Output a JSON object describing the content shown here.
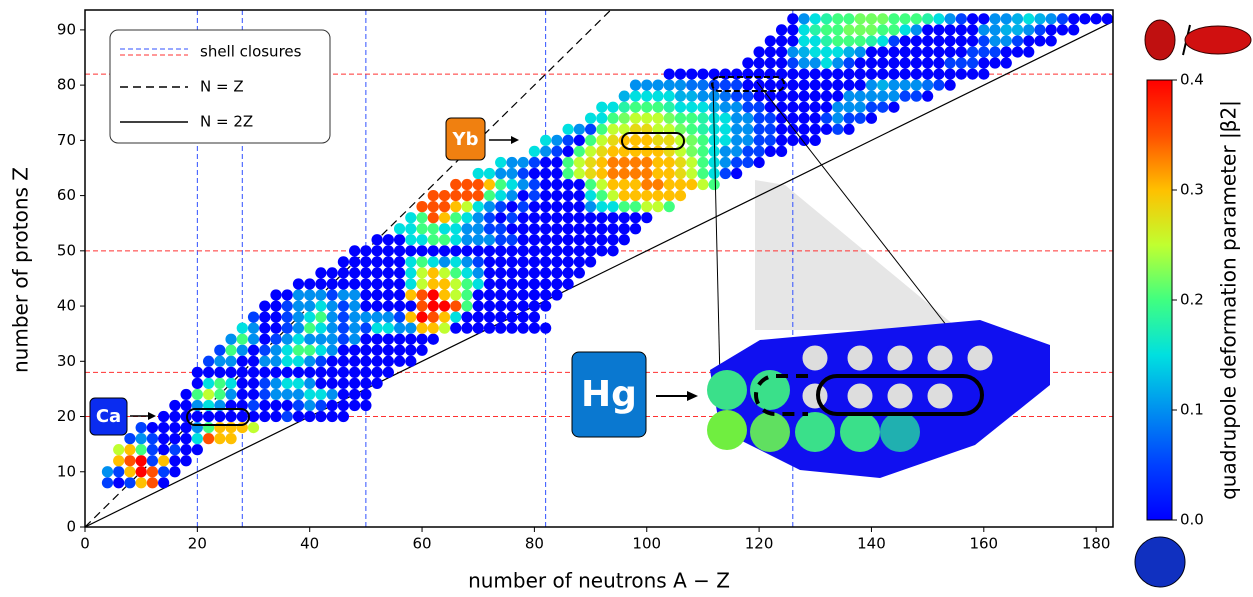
{
  "chart_data": {
    "type": "nuclear-chart",
    "xlabel": "number of neutrons A − Z",
    "ylabel": "number of protons Z",
    "colorbar_label": "quadrupole deformation parameter |β2|",
    "xlim": [
      0,
      183
    ],
    "ylim": [
      0,
      93.6
    ],
    "xticks": [
      0,
      20,
      40,
      60,
      80,
      100,
      120,
      140,
      160,
      180
    ],
    "yticks": [
      0,
      10,
      20,
      30,
      40,
      50,
      60,
      70,
      80,
      90
    ],
    "clim": [
      0,
      0.4
    ],
    "cticks": [
      {
        "value": 0,
        "label": "0.0"
      },
      0.1,
      0.2,
      0.3,
      0.4
    ],
    "legend": [
      "shell closures",
      "N = Z",
      "N = 2Z"
    ],
    "shell_closures": {
      "n": [
        20,
        28,
        50,
        82,
        126
      ],
      "z": [
        20,
        28,
        50,
        82
      ]
    },
    "tags": [
      "Ca",
      "Yb",
      "Hg"
    ],
    "rows": [
      {
        "z": 8,
        "n": 4,
        "beta": [
          0.05,
          0,
          0.05,
          0.3,
          0.35,
          0
        ]
      },
      {
        "z": 10,
        "n": 4,
        "beta": [
          0.1,
          0.05,
          0.3,
          0.4,
          0.35,
          0.05,
          0
        ]
      },
      {
        "z": 12,
        "n": 6,
        "beta": [
          0.3,
          0.35,
          0.4,
          0.05,
          0.3,
          0,
          0
        ]
      },
      {
        "z": 14,
        "n": 6,
        "beta": [
          0.25,
          0.3,
          0.2,
          0.05,
          0,
          0.05,
          0,
          0
        ]
      },
      {
        "z": 16,
        "n": 8,
        "beta": [
          0.05,
          0.1,
          0.05,
          0,
          0,
          0,
          0.15,
          0.35,
          0.3,
          0.3
        ]
      },
      {
        "z": 18,
        "n": 10,
        "beta": [
          0.05,
          0,
          0,
          0,
          0,
          0.1,
          0.2,
          0.3,
          0.3,
          0.3,
          0.25
        ]
      },
      {
        "z": 20,
        "n": 14,
        "beta": [
          0,
          0,
          0,
          0,
          0,
          0,
          0,
          0,
          0,
          0,
          0,
          0.05,
          0,
          0,
          0,
          0,
          0
        ]
      },
      {
        "z": 22,
        "n": 16,
        "beta": [
          0,
          0,
          0.1,
          0.15,
          0.1,
          0,
          0,
          0.05,
          0,
          0,
          0,
          0.05,
          0.1,
          0.05,
          0,
          0,
          0,
          0
        ]
      },
      {
        "z": 24,
        "n": 18,
        "beta": [
          0,
          0.2,
          0.25,
          0.2,
          0.1,
          0,
          0,
          0.05,
          0.1,
          0.1,
          0.1,
          0.15,
          0.15,
          0.1,
          0,
          0,
          0
        ]
      },
      {
        "z": 26,
        "n": 20,
        "beta": [
          0,
          0.15,
          0.2,
          0.15,
          0,
          0,
          0.05,
          0.1,
          0.15,
          0.15,
          0.1,
          0,
          0,
          0,
          0,
          0,
          0
        ]
      },
      {
        "z": 28,
        "n": 20,
        "beta": [
          0,
          0,
          0,
          0,
          0,
          0,
          0,
          0,
          0,
          0,
          0,
          0,
          0,
          0,
          0,
          0,
          0,
          0
        ]
      },
      {
        "z": 30,
        "n": 22,
        "beta": [
          0.05,
          0.1,
          0.1,
          0,
          0,
          0.1,
          0.1,
          0.15,
          0.15,
          0.1,
          0.05,
          0,
          0,
          0,
          0,
          0,
          0,
          0,
          0
        ]
      },
      {
        "z": 32,
        "n": 24,
        "beta": [
          0.05,
          0.2,
          0.1,
          0,
          0.05,
          0.1,
          0.15,
          0.2,
          0.2,
          0.15,
          0.1,
          0,
          0,
          0,
          0,
          0,
          0,
          0,
          0
        ]
      },
      {
        "z": 34,
        "n": 26,
        "beta": [
          0.1,
          0.2,
          0.1,
          0,
          0.05,
          0.1,
          0.15,
          0.1,
          0.1,
          0.1,
          0.05,
          0.1,
          0,
          0,
          0,
          0,
          0,
          0,
          0
        ]
      },
      {
        "z": 36,
        "n": 28,
        "beta": [
          0.15,
          0.1,
          0,
          0,
          0.05,
          0.1,
          0.2,
          0.15,
          0.1,
          0.05,
          0.1,
          0.05,
          0.15,
          0.15,
          0.1,
          0.1,
          0.3,
          0.3,
          0.25,
          0,
          0,
          0,
          0,
          0,
          0,
          0,
          0,
          0
        ]
      },
      {
        "z": 38,
        "n": 30,
        "beta": [
          0.05,
          0,
          0,
          0.05,
          0.1,
          0.15,
          0.2,
          0.1,
          0.05,
          0.1,
          0.1,
          0.1,
          0.1,
          0.05,
          0.3,
          0.4,
          0.35,
          0.3,
          0.15,
          0,
          0,
          0,
          0,
          0,
          0,
          0
        ]
      },
      {
        "z": 40,
        "n": 32,
        "beta": [
          0,
          0,
          0.05,
          0.1,
          0.1,
          0.15,
          0.1,
          0.05,
          0.1,
          0,
          0,
          0,
          0,
          0,
          0.35,
          0.4,
          0.4,
          0.35,
          0.2,
          0,
          0,
          0,
          0,
          0,
          0,
          0
        ]
      },
      {
        "z": 42,
        "n": 34,
        "beta": [
          0,
          0,
          0.1,
          0.1,
          0.1,
          0.05,
          0.1,
          0.1,
          0,
          0,
          0,
          0,
          0.3,
          0.35,
          0.4,
          0.3,
          0.25,
          0.2,
          0,
          0,
          0,
          0,
          0,
          0,
          0,
          0
        ]
      },
      {
        "z": 44,
        "n": 38,
        "beta": [
          0,
          0,
          0,
          0,
          0,
          0,
          0,
          0,
          0,
          0,
          0.15,
          0.25,
          0.3,
          0.3,
          0.25,
          0.2,
          0.15,
          0,
          0,
          0,
          0,
          0,
          0,
          0,
          0
        ]
      },
      {
        "z": 46,
        "n": 42,
        "beta": [
          0,
          0,
          0,
          0,
          0,
          0,
          0,
          0,
          0.15,
          0.25,
          0.3,
          0.25,
          0.2,
          0.15,
          0.1,
          0,
          0,
          0,
          0,
          0,
          0,
          0,
          0,
          0
        ]
      },
      {
        "z": 48,
        "n": 46,
        "beta": [
          0,
          0,
          0,
          0,
          0,
          0,
          0.15,
          0.2,
          0.15,
          0.1,
          0.15,
          0.1,
          0.05,
          0,
          0,
          0,
          0,
          0,
          0,
          0,
          0,
          0,
          0
        ]
      },
      {
        "z": 50,
        "n": 48,
        "beta": [
          0,
          0,
          0,
          0,
          0,
          0,
          0,
          0,
          0,
          0,
          0,
          0,
          0,
          0,
          0,
          0,
          0,
          0,
          0,
          0,
          0,
          0,
          0,
          0
        ]
      },
      {
        "z": 52,
        "n": 52,
        "beta": [
          0,
          0,
          0,
          0.15,
          0.15,
          0.2,
          0.2,
          0.15,
          0.1,
          0.1,
          0.1,
          0.05,
          0.05,
          0,
          0,
          0,
          0,
          0,
          0,
          0,
          0,
          0,
          0
        ]
      },
      {
        "z": 54,
        "n": 56,
        "beta": [
          0.15,
          0.15,
          0.2,
          0.2,
          0.15,
          0.15,
          0.1,
          0.1,
          0.05,
          0.05,
          0,
          0,
          0,
          0,
          0,
          0,
          0,
          0,
          0,
          0,
          0,
          0
        ]
      },
      {
        "z": 56,
        "n": 58,
        "beta": [
          0.15,
          0.2,
          0.35,
          0.3,
          0.2,
          0.15,
          0.1,
          0.05,
          0,
          0.05,
          0,
          0,
          0,
          0,
          0,
          0,
          0,
          0,
          0,
          0,
          0,
          0
        ]
      },
      {
        "z": 58,
        "n": 60,
        "beta": [
          0.35,
          0.35,
          0.35,
          0.3,
          0.25,
          0.15,
          0.1,
          0.05,
          0,
          0.05,
          0,
          0,
          0,
          0,
          0,
          0.1,
          0.15,
          0.15,
          0.2,
          0.2,
          0.25,
          0.25,
          0.2
        ]
      },
      {
        "z": 60,
        "n": 62,
        "beta": [
          0.35,
          0.35,
          0.35,
          0.35,
          0.35,
          0.2,
          0.15,
          0.1,
          0,
          0.05,
          0,
          0,
          0,
          0,
          0.15,
          0.2,
          0.25,
          0.3,
          0.3,
          0.3,
          0.3,
          0.3,
          0.3
        ]
      },
      {
        "z": 62,
        "n": 66,
        "beta": [
          0.35,
          0.35,
          0.35,
          0.3,
          0.2,
          0.15,
          0.1,
          0.05,
          0,
          0,
          0,
          0,
          0.2,
          0.25,
          0.3,
          0.3,
          0.3,
          0.33,
          0.33,
          0.3,
          0.3,
          0.3,
          0.25,
          0.2
        ]
      },
      {
        "z": 64,
        "n": 70,
        "beta": [
          0.15,
          0.15,
          0.1,
          0.1,
          0.05,
          0,
          0,
          0,
          0.2,
          0.25,
          0.28,
          0.3,
          0.33,
          0.33,
          0.33,
          0.33,
          0.3,
          0.3,
          0.28,
          0.25,
          0.2,
          0.15,
          0.05,
          0
        ]
      },
      {
        "z": 66,
        "n": 74,
        "beta": [
          0.15,
          0.1,
          0.1,
          0.05,
          0,
          0,
          0.2,
          0.25,
          0.28,
          0.3,
          0.33,
          0.33,
          0.33,
          0.33,
          0.3,
          0.3,
          0.28,
          0.25,
          0.2,
          0.15,
          0.1,
          0.05,
          0.05,
          0
        ]
      },
      {
        "z": 68,
        "n": 80,
        "beta": [
          0.15,
          0.1,
          0.05,
          0,
          0.2,
          0.25,
          0.28,
          0.3,
          0.3,
          0.3,
          0.3,
          0.3,
          0.28,
          0.25,
          0.22,
          0.2,
          0.15,
          0.1,
          0.1,
          0.05,
          0.05,
          0,
          0
        ]
      },
      {
        "z": 70,
        "n": 82,
        "beta": [
          0.15,
          0.1,
          0.05,
          0,
          0.2,
          0.25,
          0.28,
          0.3,
          0.3,
          0.3,
          0.28,
          0.28,
          0.25,
          0.22,
          0.2,
          0.15,
          0.15,
          0.1,
          0.1,
          0.05,
          0.05,
          0,
          0,
          0,
          0
        ]
      },
      {
        "z": 72,
        "n": 86,
        "beta": [
          0.15,
          0.1,
          0.05,
          0.2,
          0.25,
          0.25,
          0.28,
          0.28,
          0.25,
          0.25,
          0.22,
          0.2,
          0.18,
          0.15,
          0.15,
          0.1,
          0.1,
          0.05,
          0.05,
          0,
          0,
          0,
          0,
          0,
          0.05,
          0
        ]
      },
      {
        "z": 74,
        "n": 90,
        "beta": [
          0.15,
          0.15,
          0.2,
          0.22,
          0.25,
          0.25,
          0.25,
          0.22,
          0.2,
          0.2,
          0.18,
          0.15,
          0.15,
          0.1,
          0.1,
          0.05,
          0.05,
          0,
          0,
          0,
          0,
          0.05,
          0.1,
          0.05,
          0.05,
          0
        ]
      },
      {
        "z": 76,
        "n": 92,
        "beta": [
          0.15,
          0.15,
          0.18,
          0.2,
          0.2,
          0.2,
          0.18,
          0.15,
          0.15,
          0.15,
          0.12,
          0.1,
          0.1,
          0.05,
          0.05,
          0,
          0,
          0,
          0,
          0,
          0,
          0.1,
          0.1,
          0.1,
          0.05,
          0.05,
          0
        ]
      },
      {
        "z": 78,
        "n": 96,
        "beta": [
          0.12,
          0.15,
          0.15,
          0.15,
          0.15,
          0.12,
          0.12,
          0.1,
          0.1,
          0.08,
          0.05,
          0.05,
          0,
          0,
          0,
          0,
          0,
          0,
          0,
          0,
          0.1,
          0.1,
          0.1,
          0.1,
          0.1,
          0.05,
          0.05,
          0
        ]
      },
      {
        "z": 80,
        "n": 98,
        "beta": [
          0.1,
          0.1,
          0.1,
          0.1,
          0.1,
          0.08,
          0.08,
          0.05,
          0.05,
          0.05,
          0,
          0,
          0,
          0,
          0,
          0,
          0,
          0,
          0,
          0,
          0,
          0.1,
          0.12,
          0.1,
          0.1,
          0.1,
          0.08,
          0.05,
          0
        ]
      },
      {
        "z": 82,
        "n": 104,
        "beta": [
          0,
          0,
          0,
          0,
          0,
          0,
          0,
          0,
          0,
          0,
          0,
          0,
          0,
          0,
          0,
          0,
          0,
          0,
          0,
          0,
          0,
          0,
          0,
          0,
          0,
          0,
          0,
          0,
          0
        ]
      },
      {
        "z": 84,
        "n": 118,
        "beta": [
          0,
          0,
          0,
          0,
          0.05,
          0.1,
          0.1,
          0.15,
          0.1,
          0.05,
          0,
          0,
          0,
          0,
          0,
          0,
          0,
          0,
          0.05,
          0.05,
          0.05,
          0,
          0,
          0
        ]
      },
      {
        "z": 86,
        "n": 120,
        "beta": [
          0,
          0,
          0,
          0.1,
          0.12,
          0.15,
          0.15,
          0.15,
          0.12,
          0.1,
          0,
          0,
          0,
          0,
          0,
          0,
          0,
          0,
          0,
          0.05,
          0.05,
          0.05,
          0,
          0,
          0
        ]
      },
      {
        "z": 88,
        "n": 122,
        "beta": [
          0,
          0,
          0,
          0.15,
          0.15,
          0.18,
          0.2,
          0.2,
          0.2,
          0.18,
          0.15,
          0.05,
          0,
          0,
          0,
          0,
          0,
          0,
          0,
          0.05,
          0.1,
          0.1,
          0.05,
          0,
          0,
          0
        ]
      },
      {
        "z": 90,
        "n": 124,
        "beta": [
          0,
          0,
          0.15,
          0.18,
          0.2,
          0.2,
          0.22,
          0.22,
          0.22,
          0.2,
          0.2,
          0.15,
          0.1,
          0,
          0,
          0,
          0,
          0,
          0.1,
          0.1,
          0.12,
          0.12,
          0.1,
          0.05,
          0,
          0,
          0
        ]
      },
      {
        "z": 92,
        "n": 126,
        "beta": [
          0,
          0.1,
          0.15,
          0.18,
          0.2,
          0.2,
          0.22,
          0.22,
          0.22,
          0.2,
          0.2,
          0.2,
          0.18,
          0.15,
          0.1,
          0.05,
          0,
          0,
          0.1,
          0.1,
          0.12,
          0.15,
          0.12,
          0.1,
          0.05,
          0,
          0,
          0,
          0
        ]
      }
    ]
  }
}
